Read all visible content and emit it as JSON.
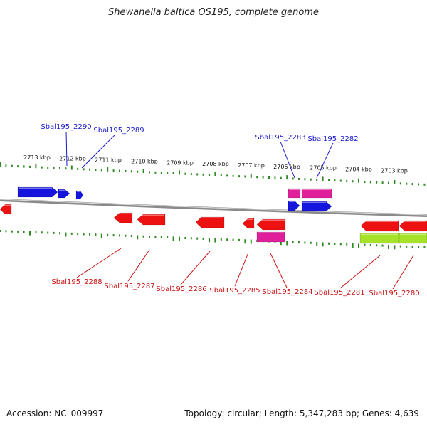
{
  "title": "Shewanella baltica OS195, complete genome",
  "footer": {
    "accession": "Accession: NC_009997",
    "summary": "Topology: circular; Length: 5,347,283 bp; Genes: 4,639"
  },
  "colors": {
    "ruler": "#2e8b22",
    "backbone": "#8a8a8a",
    "top_label": "#1a1acc",
    "bottom_label": "#cc1111",
    "gene_blue": "#1515dd",
    "gene_red": "#ee1111",
    "gene_magenta": "#e0209a",
    "gene_lime": "#a6e22a"
  },
  "kbp_labels": [
    "2713 kbp",
    "2712 kbp",
    "2711 kbp",
    "2710 kbp",
    "2709 kbp",
    "2708 kbp",
    "2707 kbp",
    "2706 kbp",
    "2705 kbp",
    "2704 kbp",
    "2703 kbp"
  ],
  "genes_top": [
    {
      "name": "Sbal195_2290"
    },
    {
      "name": "Sbal195_2289"
    },
    {
      "name": "Sbal195_2283"
    },
    {
      "name": "Sbal195_2282"
    }
  ],
  "genes_bottom": [
    {
      "name": "Sbal195_2288"
    },
    {
      "name": "Sbal195_2287"
    },
    {
      "name": "Sbal195_2286"
    },
    {
      "name": "Sbal195_2285"
    },
    {
      "name": "Sbal195_2284"
    },
    {
      "name": "Sbal195_2281"
    },
    {
      "name": "Sbal195_2280"
    }
  ]
}
